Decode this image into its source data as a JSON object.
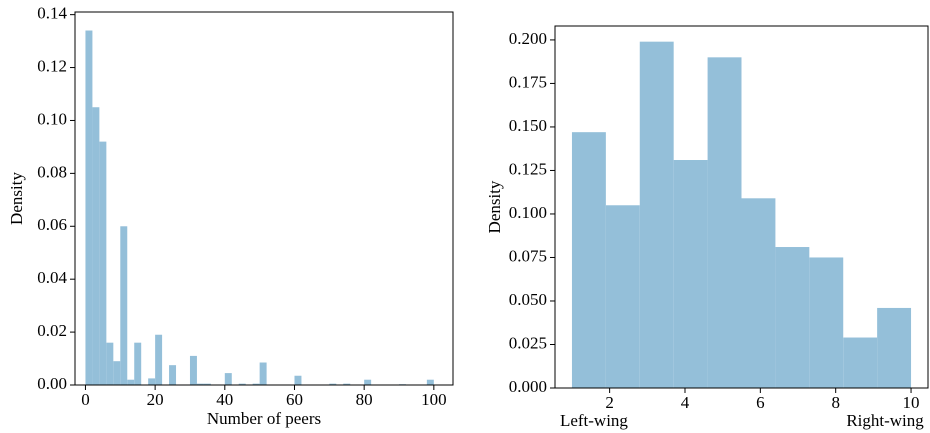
{
  "chart_data": [
    {
      "type": "histogram",
      "xlabel": "Number of peers",
      "ylabel": "Density",
      "color": "#94bfd9",
      "bins": [
        0,
        2,
        4,
        6,
        8,
        10,
        12,
        14,
        16,
        18,
        20,
        22,
        24,
        26,
        28,
        30,
        32,
        34,
        36,
        38,
        40,
        42,
        44,
        46,
        48,
        50,
        52,
        54,
        56,
        58,
        60,
        62,
        64,
        66,
        68,
        70,
        72,
        74,
        76,
        78,
        80,
        82,
        84,
        86,
        88,
        90,
        92,
        94,
        96,
        98,
        100
      ],
      "values": [
        0.134,
        0.105,
        0.092,
        0.016,
        0.009,
        0.06,
        0.002,
        0.016,
        0,
        0.0025,
        0.019,
        0,
        0.0075,
        0,
        0,
        0.011,
        0.0005,
        0.0005,
        0,
        0,
        0.0045,
        0,
        0.0005,
        0,
        0.0005,
        0.0085,
        0,
        0,
        0,
        0,
        0.0035,
        0,
        0,
        0,
        0,
        0.0005,
        0,
        0.0005,
        0,
        0,
        0.002,
        0,
        0,
        0,
        0,
        0.0003,
        0,
        0,
        0,
        0.002
      ],
      "xlim": [
        -3,
        105.5
      ],
      "ylim": [
        0,
        0.141
      ],
      "xticks": [
        0,
        20,
        40,
        60,
        80,
        100
      ],
      "yticks": [
        {
          "value": 0,
          "label": "0.00"
        },
        {
          "value": 0.02,
          "label": "0.02"
        },
        {
          "value": 0.04,
          "label": "0.04"
        },
        {
          "value": 0.06,
          "label": "0.06"
        },
        {
          "value": 0.08,
          "label": "0.08"
        },
        {
          "value": 0.1,
          "label": "0.10"
        },
        {
          "value": 0.12,
          "label": "0.12"
        },
        {
          "value": 0.14,
          "label": "0.14"
        }
      ]
    },
    {
      "type": "histogram",
      "ylabel": "Density",
      "color": "#94bfd9",
      "bins": [
        1,
        1.9,
        2.8,
        3.7,
        4.6,
        5.5,
        6.4,
        7.3,
        8.2,
        9.1,
        10
      ],
      "values": [
        0.147,
        0.105,
        0.199,
        0.131,
        0.19,
        0.109,
        0.081,
        0.075,
        0.029,
        0.046
      ],
      "xlim": [
        0.55,
        10.45
      ],
      "ylim": [
        0,
        0.208
      ],
      "xticks": [
        2,
        4,
        6,
        8,
        10
      ],
      "yticks": [
        {
          "value": 0,
          "label": "0.000"
        },
        {
          "value": 0.025,
          "label": "0.025"
        },
        {
          "value": 0.05,
          "label": "0.050"
        },
        {
          "value": 0.075,
          "label": "0.075"
        },
        {
          "value": 0.1,
          "label": "0.100"
        },
        {
          "value": 0.125,
          "label": "0.125"
        },
        {
          "value": 0.15,
          "label": "0.150"
        },
        {
          "value": 0.175,
          "label": "0.175"
        },
        {
          "value": 0.2,
          "label": "0.200"
        }
      ],
      "annotations": [
        "Left-wing",
        "Right-wing"
      ]
    }
  ]
}
